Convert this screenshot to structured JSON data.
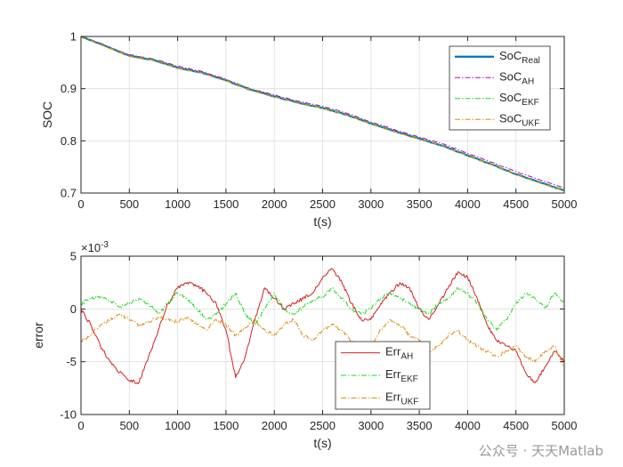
{
  "watermark": "公众号 · 天天Matlab",
  "chart_data": [
    {
      "type": "line",
      "xlabel": "t(s)",
      "ylabel": "SOC",
      "xlim": [
        0,
        5000
      ],
      "ylim": [
        0.7,
        1.0
      ],
      "xticks": [
        0,
        500,
        1000,
        1500,
        2000,
        2500,
        3000,
        3500,
        4000,
        4500,
        5000
      ],
      "yticks": [
        0.7,
        0.8,
        0.9,
        1.0
      ],
      "ytick_labels": [
        "0.7",
        "0.8",
        "0.9",
        "1"
      ],
      "grid": true,
      "legend": "top-right",
      "x": [
        0,
        250,
        500,
        750,
        1000,
        1250,
        1500,
        1750,
        2000,
        2250,
        2500,
        2750,
        3000,
        3250,
        3500,
        3750,
        4000,
        4250,
        4500,
        4750,
        5000
      ],
      "series": [
        {
          "name": "SoC",
          "sub": "Real",
          "color": "#0072bd",
          "dash": "",
          "width": 2.2,
          "values": [
            1.0,
            0.982,
            0.963,
            0.955,
            0.94,
            0.931,
            0.916,
            0.898,
            0.885,
            0.873,
            0.863,
            0.85,
            0.833,
            0.818,
            0.804,
            0.79,
            0.772,
            0.755,
            0.736,
            0.72,
            0.705
          ]
        },
        {
          "name": "SoC",
          "sub": "AH",
          "color": "#c000c0",
          "dash": "6 2 1.5 2",
          "width": 1,
          "values": [
            1.0,
            0.983,
            0.965,
            0.957,
            0.943,
            0.933,
            0.918,
            0.9,
            0.888,
            0.876,
            0.866,
            0.853,
            0.836,
            0.821,
            0.807,
            0.794,
            0.776,
            0.759,
            0.741,
            0.725,
            0.71
          ]
        },
        {
          "name": "SoC",
          "sub": "EKF",
          "color": "#1fd91f",
          "dash": "6 2 1.5 2",
          "width": 1,
          "values": [
            1.0,
            0.982,
            0.963,
            0.956,
            0.94,
            0.931,
            0.916,
            0.899,
            0.885,
            0.873,
            0.864,
            0.85,
            0.834,
            0.818,
            0.804,
            0.79,
            0.772,
            0.756,
            0.736,
            0.72,
            0.706
          ]
        },
        {
          "name": "SoC",
          "sub": "UKF",
          "color": "#e08a10",
          "dash": "6 2 1.5 2",
          "width": 1,
          "values": [
            0.999,
            0.981,
            0.962,
            0.954,
            0.939,
            0.93,
            0.915,
            0.897,
            0.884,
            0.872,
            0.862,
            0.849,
            0.832,
            0.817,
            0.803,
            0.789,
            0.771,
            0.754,
            0.735,
            0.719,
            0.704
          ]
        }
      ]
    },
    {
      "type": "line",
      "xlabel": "t(s)",
      "ylabel": "error",
      "exponent": "×10",
      "exponent_power": "-3",
      "xlim": [
        0,
        5000
      ],
      "ylim": [
        -10,
        5
      ],
      "xticks": [
        0,
        500,
        1000,
        1500,
        2000,
        2500,
        3000,
        3500,
        4000,
        4500,
        5000
      ],
      "yticks": [
        -10,
        -5,
        0,
        5
      ],
      "ytick_labels": [
        "-10",
        "-5",
        "0",
        "5"
      ],
      "grid": true,
      "legend": "bottom-center",
      "x": [
        0,
        100,
        200,
        300,
        400,
        500,
        600,
        700,
        800,
        900,
        1000,
        1100,
        1200,
        1300,
        1400,
        1500,
        1600,
        1700,
        1800,
        1900,
        2000,
        2100,
        2200,
        2300,
        2400,
        2500,
        2600,
        2700,
        2800,
        2900,
        3000,
        3100,
        3200,
        3300,
        3400,
        3500,
        3600,
        3700,
        3800,
        3900,
        4000,
        4100,
        4200,
        4300,
        4400,
        4500,
        4600,
        4700,
        4800,
        4900,
        5000
      ],
      "series": [
        {
          "name": "Err",
          "sub": "AH",
          "color": "#d62020",
          "dash": "",
          "width": 1,
          "values": [
            0.0,
            -1.5,
            -3.5,
            -5.0,
            -6.0,
            -6.8,
            -7.0,
            -4.5,
            -2.0,
            0.5,
            2.0,
            2.5,
            2.2,
            1.5,
            0.5,
            -2.0,
            -6.5,
            -4.5,
            -1.0,
            2.0,
            1.0,
            0.0,
            0.5,
            1.0,
            1.5,
            3.0,
            3.8,
            2.5,
            0.5,
            -1.0,
            -1.0,
            0.5,
            1.5,
            2.5,
            2.0,
            0.0,
            -1.0,
            0.5,
            2.0,
            3.5,
            3.0,
            1.0,
            -1.5,
            -3.0,
            -3.5,
            -4.0,
            -6.0,
            -7.0,
            -5.5,
            -4.0,
            -5.0
          ]
        },
        {
          "name": "Err",
          "sub": "EKF",
          "color": "#1fd91f",
          "dash": "6 2 1.5 2",
          "width": 1,
          "values": [
            0.5,
            1.0,
            1.2,
            0.8,
            0.2,
            0.5,
            1.0,
            0.5,
            -0.5,
            0.5,
            1.5,
            1.0,
            0.0,
            -1.0,
            -0.5,
            0.5,
            1.5,
            -0.5,
            -1.5,
            0.0,
            1.5,
            0.0,
            -0.5,
            0.2,
            0.8,
            1.2,
            2.0,
            1.0,
            0.0,
            -0.5,
            0.0,
            1.0,
            1.5,
            1.0,
            0.5,
            0.0,
            -0.5,
            0.5,
            1.0,
            2.0,
            1.5,
            0.5,
            -1.0,
            -2.0,
            -1.0,
            0.5,
            1.5,
            1.0,
            0.0,
            1.5,
            0.5
          ]
        },
        {
          "name": "Err",
          "sub": "UKF",
          "color": "#e08a10",
          "dash": "6 2 1.5 2",
          "width": 1,
          "values": [
            -3.0,
            -2.5,
            -1.5,
            -1.0,
            -0.5,
            -1.0,
            -1.5,
            -1.2,
            -0.8,
            -1.0,
            -1.2,
            -0.8,
            -1.5,
            -2.0,
            -1.0,
            -1.5,
            -2.5,
            -1.8,
            -1.0,
            -2.0,
            -2.5,
            -1.5,
            -1.0,
            -2.5,
            -3.0,
            -2.0,
            -1.5,
            -2.0,
            -3.0,
            -4.0,
            -3.5,
            -2.0,
            -1.0,
            -1.5,
            -2.5,
            -3.0,
            -4.0,
            -3.5,
            -2.5,
            -2.0,
            -3.0,
            -3.5,
            -4.0,
            -4.5,
            -4.0,
            -3.5,
            -4.5,
            -5.0,
            -4.0,
            -3.5,
            -5.5
          ]
        }
      ]
    }
  ]
}
